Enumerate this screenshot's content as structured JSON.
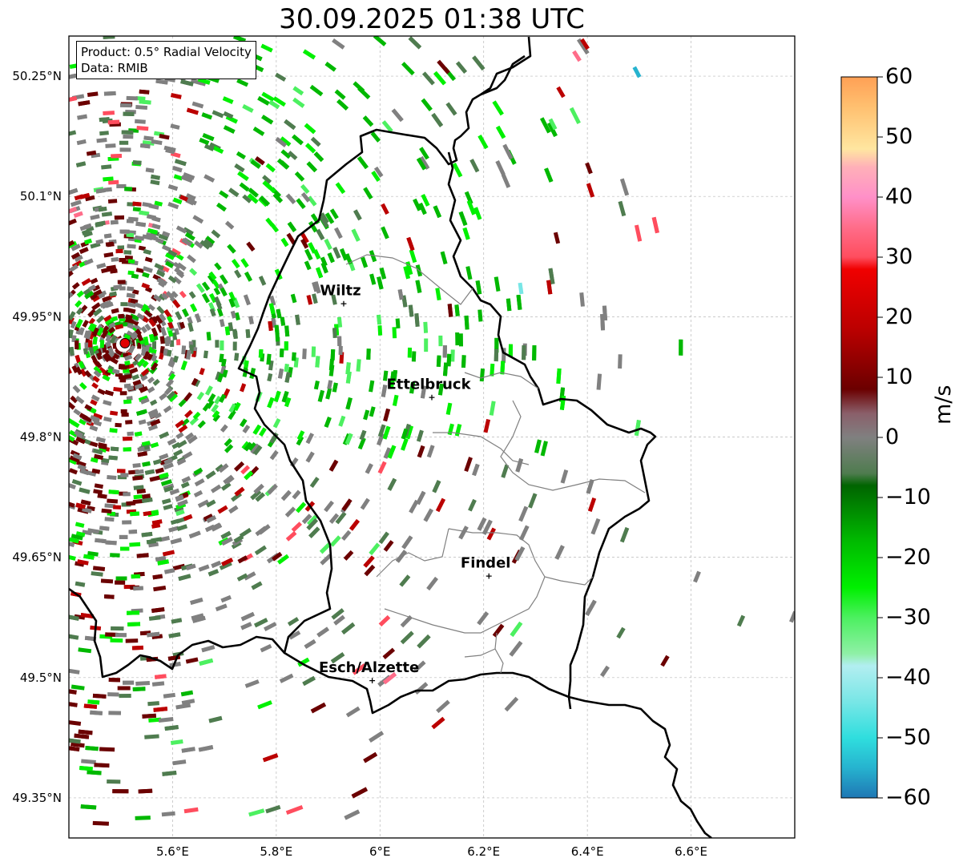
{
  "title": "30.09.2025 01:38 UTC",
  "info_box": {
    "product_line": "Product: 0.5° Radial Velocity",
    "data_line": "Data: RMIB"
  },
  "map": {
    "lon_range": [
      5.4,
      6.8
    ],
    "lat_range": [
      49.3,
      50.3
    ],
    "lat_ticks": [
      {
        "value": 50.25,
        "label": "50.25°N"
      },
      {
        "value": 50.1,
        "label": "50.1°N"
      },
      {
        "value": 49.95,
        "label": "49.95°N"
      },
      {
        "value": 49.8,
        "label": "49.8°N"
      },
      {
        "value": 49.65,
        "label": "49.65°N"
      },
      {
        "value": 49.5,
        "label": "49.5°N"
      },
      {
        "value": 49.35,
        "label": "49.35°N"
      }
    ],
    "lon_ticks": [
      {
        "value": 5.6,
        "label": "5.6°E"
      },
      {
        "value": 5.8,
        "label": "5.8°E"
      },
      {
        "value": 6.0,
        "label": "6°E"
      },
      {
        "value": 6.2,
        "label": "6.2°E"
      },
      {
        "value": 6.4,
        "label": "6.4°E"
      },
      {
        "value": 6.6,
        "label": "6.6°E"
      }
    ],
    "grid": true,
    "radar_site": {
      "lon": 5.505,
      "lat": 49.915
    },
    "cities": [
      {
        "name": "Wiltz",
        "lon": 5.93,
        "lat": 49.967
      },
      {
        "name": "Ettelbruck",
        "lon": 6.1,
        "lat": 49.85
      },
      {
        "name": "Findel",
        "lon": 6.21,
        "lat": 49.627
      },
      {
        "name": "Esch/Alzette",
        "lon": 5.985,
        "lat": 49.497
      }
    ]
  },
  "colorbar": {
    "label": "m/s",
    "min": -60,
    "max": 60,
    "ticks": [
      "60",
      "50",
      "40",
      "30",
      "20",
      "10",
      "0",
      "−10",
      "−20",
      "−30",
      "−40",
      "−50",
      "−60"
    ],
    "stops": [
      {
        "v": -60,
        "color": "#1f77b4"
      },
      {
        "v": -55,
        "color": "#26b3cf"
      },
      {
        "v": -50,
        "color": "#2fdede"
      },
      {
        "v": -44,
        "color": "#78e6e6"
      },
      {
        "v": -38,
        "color": "#b2eef0"
      },
      {
        "v": -36,
        "color": "#8ff0a6"
      },
      {
        "v": -30,
        "color": "#4cf060"
      },
      {
        "v": -25,
        "color": "#00f000"
      },
      {
        "v": -17,
        "color": "#00b800"
      },
      {
        "v": -8,
        "color": "#006400"
      },
      {
        "v": -6,
        "color": "#4f7c4f"
      },
      {
        "v": 0,
        "color": "#808080"
      },
      {
        "v": 4,
        "color": "#8a5f6a"
      },
      {
        "v": 8,
        "color": "#6b0000"
      },
      {
        "v": 18,
        "color": "#bb0000"
      },
      {
        "v": 28,
        "color": "#f00000"
      },
      {
        "v": 30,
        "color": "#ff4d5e"
      },
      {
        "v": 35,
        "color": "#ff6d8a"
      },
      {
        "v": 40,
        "color": "#ff90c8"
      },
      {
        "v": 45,
        "color": "#ffb0b8"
      },
      {
        "v": 48,
        "color": "#ffe6a0"
      },
      {
        "v": 55,
        "color": "#ffc070"
      },
      {
        "v": 60,
        "color": "#ffa055"
      }
    ]
  }
}
